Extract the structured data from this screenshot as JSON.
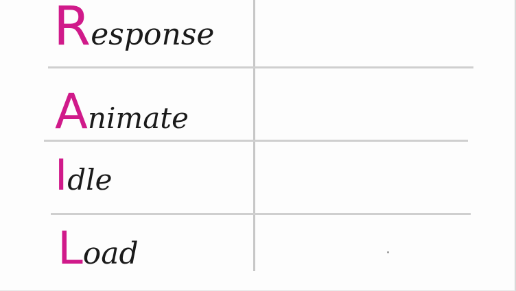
{
  "rows": [
    {
      "initial": "R",
      "rest": "esponse"
    },
    {
      "initial": "A",
      "rest": "nimate"
    },
    {
      "initial": "I",
      "rest": "dle"
    },
    {
      "initial": "L",
      "rest": "oad"
    }
  ],
  "colors": {
    "initial": "#d01a8a",
    "text": "#1a1a1a",
    "lines": "#c7c7c7"
  }
}
